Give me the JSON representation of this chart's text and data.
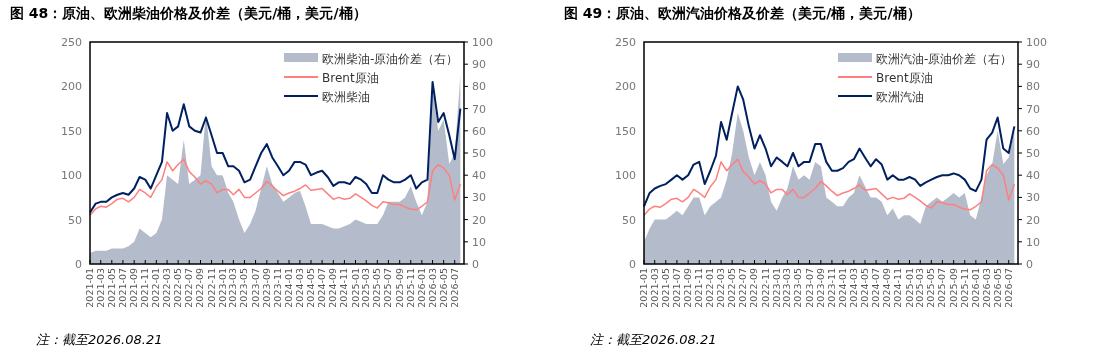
{
  "chart_data": [
    {
      "type": "line",
      "title": "图 48：原油、欧洲柴油价格及价差（美元/桶，美元/桶）",
      "annotations": [
        "注：截至2026.08.21"
      ],
      "legend": "top right",
      "grid": false,
      "x": [
        "2021-01",
        "2021-02",
        "2021-03",
        "2021-04",
        "2021-05",
        "2021-06",
        "2021-07",
        "2021-08",
        "2021-09",
        "2021-10",
        "2021-11",
        "2021-12",
        "2022-01",
        "2022-02",
        "2022-03",
        "2022-04",
        "2022-05",
        "2022-06",
        "2022-07",
        "2022-08",
        "2022-09",
        "2022-10",
        "2022-11",
        "2022-12",
        "2023-01",
        "2023-02",
        "2023-03",
        "2023-04",
        "2023-05",
        "2023-06",
        "2023-07",
        "2023-08",
        "2023-09",
        "2023-10",
        "2023-11",
        "2023-12",
        "2024-01",
        "2024-02",
        "2024-03",
        "2024-04",
        "2024-05",
        "2024-06",
        "2024-07",
        "2024-08",
        "2024-09",
        "2024-10",
        "2024-11",
        "2024-12",
        "2025-01",
        "2025-02",
        "2025-03",
        "2025-04",
        "2025-05",
        "2025-06",
        "2025-07",
        "2025-08",
        "2025-09",
        "2025-10",
        "2025-11",
        "2025-12",
        "2026-01",
        "2026-02",
        "2026-03",
        "2026-04",
        "2026-05",
        "2026-06",
        "2026-07",
        "2026-08"
      ],
      "xlim": [
        "2021-01",
        "2026-08-21"
      ],
      "xticks": [
        "2021-01",
        "2021-03",
        "2021-05",
        "2021-07",
        "2021-09",
        "2021-11",
        "2022-01",
        "2022-03",
        "2022-05",
        "2022-07",
        "2022-09",
        "2022-11",
        "2023-01",
        "2023-03",
        "2023-05",
        "2023-07",
        "2023-09",
        "2023-11",
        "2024-01",
        "2024-03",
        "2024-05",
        "2024-07",
        "2024-09",
        "2024-11",
        "2025-01",
        "2025-03",
        "2025-05",
        "2025-07",
        "2025-09",
        "2025-11",
        "2026-01",
        "2026-03",
        "2026-05",
        "2026-07"
      ],
      "ylim": [
        0,
        250
      ],
      "yticks": [
        0,
        50,
        100,
        150,
        200,
        250
      ],
      "y2lim": [
        0,
        100
      ],
      "y2ticks": [
        0,
        10,
        20,
        30,
        40,
        50,
        60,
        70,
        80,
        90,
        100
      ],
      "series": [
        {
          "name": "欧洲柴油-原油价差（右）",
          "type": "area",
          "axis": "y2",
          "color": "#b4bccb",
          "values": [
            5,
            6,
            6,
            6,
            7,
            7,
            7,
            8,
            10,
            16,
            14,
            12,
            14,
            20,
            40,
            38,
            36,
            56,
            36,
            38,
            40,
            68,
            44,
            40,
            40,
            32,
            28,
            20,
            14,
            18,
            24,
            34,
            44,
            36,
            32,
            28,
            30,
            32,
            33,
            26,
            18,
            18,
            18,
            17,
            16,
            16,
            17,
            18,
            20,
            19,
            18,
            18,
            18,
            22,
            28,
            28,
            28,
            30,
            35,
            28,
            22,
            28,
            80,
            60,
            65,
            45,
            50,
            85
          ]
        },
        {
          "name": "Brent原油",
          "color": "#ff7f7f",
          "values": [
            55,
            62,
            65,
            64,
            68,
            73,
            74,
            70,
            75,
            84,
            80,
            75,
            87,
            95,
            115,
            105,
            112,
            118,
            104,
            98,
            90,
            94,
            90,
            80,
            84,
            84,
            78,
            84,
            75,
            75,
            80,
            85,
            93,
            88,
            82,
            77,
            80,
            82,
            85,
            89,
            83,
            84,
            85,
            79,
            73,
            75,
            73,
            74,
            79,
            75,
            71,
            66,
            63,
            70,
            69,
            67,
            67,
            64,
            62,
            61,
            65,
            70,
            105,
            112,
            108,
            100,
            72,
            90
          ]
        },
        {
          "name": "欧洲柴油",
          "color": "#002060",
          "values": [
            58,
            68,
            70,
            70,
            75,
            78,
            80,
            78,
            85,
            98,
            95,
            85,
            100,
            115,
            170,
            150,
            155,
            180,
            155,
            150,
            148,
            165,
            145,
            125,
            125,
            110,
            110,
            105,
            92,
            95,
            110,
            125,
            135,
            120,
            110,
            100,
            105,
            115,
            115,
            112,
            100,
            103,
            105,
            98,
            88,
            92,
            92,
            90,
            98,
            95,
            90,
            80,
            80,
            100,
            95,
            92,
            92,
            95,
            100,
            85,
            92,
            95,
            205,
            160,
            170,
            145,
            118,
            175
          ]
        }
      ]
    },
    {
      "type": "line",
      "title": "图 49：原油、欧洲汽油价格及价差（美元/桶，美元/桶）",
      "annotations": [
        "注：截至2026.08.21"
      ],
      "legend": "top right",
      "grid": false,
      "x": [
        "2021-01",
        "2021-02",
        "2021-03",
        "2021-04",
        "2021-05",
        "2021-06",
        "2021-07",
        "2021-08",
        "2021-09",
        "2021-10",
        "2021-11",
        "2021-12",
        "2022-01",
        "2022-02",
        "2022-03",
        "2022-04",
        "2022-05",
        "2022-06",
        "2022-07",
        "2022-08",
        "2022-09",
        "2022-10",
        "2022-11",
        "2022-12",
        "2023-01",
        "2023-02",
        "2023-03",
        "2023-04",
        "2023-05",
        "2023-06",
        "2023-07",
        "2023-08",
        "2023-09",
        "2023-10",
        "2023-11",
        "2023-12",
        "2024-01",
        "2024-02",
        "2024-03",
        "2024-04",
        "2024-05",
        "2024-06",
        "2024-07",
        "2024-08",
        "2024-09",
        "2024-10",
        "2024-11",
        "2024-12",
        "2025-01",
        "2025-02",
        "2025-03",
        "2025-04",
        "2025-05",
        "2025-06",
        "2025-07",
        "2025-08",
        "2025-09",
        "2025-10",
        "2025-11",
        "2025-12",
        "2026-01",
        "2026-02",
        "2026-03",
        "2026-04",
        "2026-05",
        "2026-06",
        "2026-07",
        "2026-08"
      ],
      "xlim": [
        "2021-01",
        "2026-08-21"
      ],
      "xticks": [
        "2021-01",
        "2021-03",
        "2021-05",
        "2021-07",
        "2021-09",
        "2021-11",
        "2022-01",
        "2022-03",
        "2022-05",
        "2022-07",
        "2022-09",
        "2022-11",
        "2023-01",
        "2023-03",
        "2023-05",
        "2023-07",
        "2023-09",
        "2023-11",
        "2024-01",
        "2024-03",
        "2024-05",
        "2024-07",
        "2024-09",
        "2024-11",
        "2025-01",
        "2025-03",
        "2025-05",
        "2025-07",
        "2025-09",
        "2025-11",
        "2026-01",
        "2026-03",
        "2026-05",
        "2026-07"
      ],
      "ylim": [
        0,
        250
      ],
      "yticks": [
        0,
        50,
        100,
        150,
        200,
        250
      ],
      "y2lim": [
        0,
        100
      ],
      "y2ticks": [
        0,
        10,
        20,
        30,
        40,
        50,
        60,
        70,
        80,
        90,
        100
      ],
      "series": [
        {
          "name": "欧洲汽油-原油价差（右）",
          "type": "area",
          "axis": "y2",
          "color": "#b4bccb",
          "values": [
            10,
            16,
            20,
            20,
            20,
            22,
            24,
            22,
            26,
            30,
            30,
            22,
            26,
            28,
            30,
            38,
            50,
            68,
            60,
            48,
            40,
            46,
            40,
            28,
            24,
            30,
            34,
            44,
            38,
            40,
            38,
            46,
            44,
            30,
            28,
            26,
            26,
            30,
            32,
            40,
            35,
            30,
            30,
            28,
            22,
            25,
            20,
            22,
            22,
            20,
            18,
            26,
            28,
            30,
            28,
            30,
            32,
            30,
            32,
            22,
            20,
            30,
            40,
            45,
            60,
            45,
            48,
            60
          ]
        },
        {
          "name": "Brent原油",
          "color": "#ff7f7f",
          "values": [
            55,
            62,
            65,
            64,
            68,
            73,
            74,
            70,
            75,
            84,
            80,
            75,
            87,
            95,
            115,
            105,
            112,
            118,
            104,
            98,
            90,
            94,
            90,
            80,
            84,
            84,
            78,
            84,
            75,
            75,
            80,
            85,
            93,
            88,
            82,
            77,
            80,
            82,
            85,
            89,
            83,
            84,
            85,
            79,
            73,
            75,
            73,
            74,
            79,
            75,
            71,
            66,
            63,
            70,
            69,
            67,
            67,
            64,
            62,
            61,
            65,
            70,
            105,
            112,
            108,
            100,
            72,
            90
          ]
        },
        {
          "name": "欧洲汽油",
          "color": "#002060",
          "values": [
            65,
            80,
            85,
            88,
            90,
            95,
            100,
            95,
            100,
            112,
            115,
            90,
            105,
            122,
            160,
            140,
            170,
            200,
            185,
            155,
            130,
            145,
            130,
            110,
            120,
            115,
            110,
            125,
            110,
            115,
            115,
            135,
            135,
            115,
            105,
            105,
            108,
            115,
            118,
            130,
            120,
            110,
            118,
            112,
            95,
            100,
            95,
            95,
            98,
            95,
            88,
            92,
            95,
            98,
            100,
            100,
            102,
            100,
            95,
            85,
            82,
            95,
            140,
            148,
            165,
            130,
            125,
            155
          ]
        }
      ]
    }
  ]
}
